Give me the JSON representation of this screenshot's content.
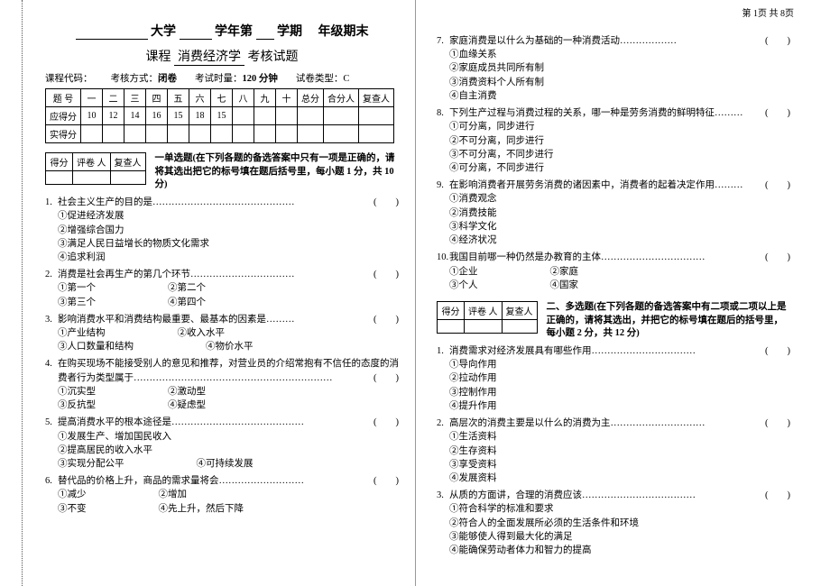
{
  "pageIndicator": "第 1页 共 8页",
  "header": {
    "line1_pre": "",
    "line1_uni": "大学",
    "line1_acad": "学年第",
    "line1_sem": "学期",
    "line1_grade": "年级期末",
    "subtitle_pre": "课程",
    "course_name": "消费经济学",
    "subtitle_post": "考核试题"
  },
  "meta": {
    "code_label": "课程代码：",
    "method_label": "考核方式：",
    "method_value": "闭卷",
    "duration_label": "考试时量：",
    "duration_value": "120 分钟",
    "papertype_label": "试卷类型：",
    "papertype_value": "C"
  },
  "scoreTable": {
    "headers": [
      "题 号",
      "一",
      "二",
      "三",
      "四",
      "五",
      "六",
      "七",
      "八",
      "九",
      "十",
      "总分",
      "合分人",
      "复查人"
    ],
    "row1_label": "应得分",
    "row1_values": [
      "10",
      "12",
      "14",
      "16",
      "15",
      "18",
      "15",
      "",
      "",
      "",
      "",
      "",
      ""
    ],
    "row2_label": "实得分"
  },
  "miniHeaders": [
    "得分",
    "评卷 人",
    "复查人"
  ],
  "sectionA": {
    "title": "一单选题",
    "desc": "(在下列各题的备选答案中只有一项是正确的，请将其选出把它的标号填在题后括号里，每小题 1 分，共 10 分)"
  },
  "sectionB": {
    "title": "二、多选题",
    "desc": "(在下列各题的备选答案中有二项或二项以上是正确的，请将其选出，并把它的标号填在题后的括号里，每小题 2 分，共 12 分)"
  },
  "qA": [
    {
      "n": "1.",
      "stem": "社会主义生产的目的是………………………………………",
      "opts": [
        [
          "①促进经济发展"
        ],
        [
          "②增强综合国力"
        ],
        [
          "③满足人民日益增长的物质文化需求"
        ],
        [
          "④追求利润"
        ]
      ]
    },
    {
      "n": "2.",
      "stem": "消费是社会再生产的第几个环节……………………………",
      "opts": [
        [
          "①第一个",
          "②第二个"
        ],
        [
          "③第三个",
          "④第四个"
        ]
      ]
    },
    {
      "n": "3.",
      "stem": "影响消费水平和消费结构最重要、最基本的因素是………",
      "opts": [
        [
          "①产业结构",
          "②收入水平"
        ],
        [
          "③人口数量和结构",
          "④物价水平"
        ]
      ]
    },
    {
      "n": "4.",
      "stem": "在购买现场不能接受别人的意见和推荐，对营业员的介绍常抱有不信任的态度的消费者行为类型属于………………………………………………………",
      "opts": [
        [
          "①沉实型",
          "②激动型"
        ],
        [
          "③反抗型",
          "④疑虑型"
        ]
      ]
    },
    {
      "n": "5.",
      "stem": "提高消费水平的根本途径是……………………………………",
      "opts": [
        [
          "①发展生产、增加国民收入"
        ],
        [
          "②提高居民的收入水平"
        ],
        [
          "③实现分配公平",
          "④可持续发展"
        ]
      ]
    },
    {
      "n": "6.",
      "stem": "替代品的价格上升，商品的需求量将会………………………",
      "opts": [
        [
          "①减少",
          "②增加"
        ],
        [
          "③不变",
          "④先上升，然后下降"
        ]
      ]
    }
  ],
  "qAR": [
    {
      "n": "7.",
      "stem": "家庭消费是以什么为基础的一种消费活动………………",
      "opts": [
        [
          "①血缘关系"
        ],
        [
          "②家庭成员共同所有制"
        ],
        [
          "③消费资料个人所有制"
        ],
        [
          "④自主消费"
        ]
      ]
    },
    {
      "n": "8.",
      "stem": "下列生产过程与消费过程的关系，哪一种是劳务消费的鲜明特征………",
      "opts": [
        [
          "①可分离，同步进行"
        ],
        [
          "②不可分离，同步进行"
        ],
        [
          "③不可分离，不同步进行"
        ],
        [
          "④可分离，不同步进行"
        ]
      ]
    },
    {
      "n": "9.",
      "stem": "在影响消费者开展劳务消费的诸因素中，消费者的起着决定作用………",
      "opts": [
        [
          "①消费观念"
        ],
        [
          "②消费技能"
        ],
        [
          "③科学文化"
        ],
        [
          "④经济状况"
        ]
      ]
    },
    {
      "n": "10.",
      "stem": "我国目前哪一种仍然是办教育的主体……………………………",
      "opts": [
        [
          "①企业",
          "②家庭"
        ],
        [
          "③个人",
          "④国家"
        ]
      ]
    }
  ],
  "qB": [
    {
      "n": "1.",
      "stem": "消费需求对经济发展具有哪些作用……………………………",
      "opts": [
        [
          "①导向作用"
        ],
        [
          "②拉动作用"
        ],
        [
          "③控制作用"
        ],
        [
          "④提升作用"
        ]
      ]
    },
    {
      "n": "2.",
      "stem": "高层次的消费主要是以什么的消费为主…………………………",
      "opts": [
        [
          "①生活资料"
        ],
        [
          "②生存资料"
        ],
        [
          "③享受资料"
        ],
        [
          "④发展资料"
        ]
      ]
    },
    {
      "n": "3.",
      "stem": "从质的方面讲，合理的消费应该………………………………",
      "opts": [
        [
          "①符合科学的标准和要求"
        ],
        [
          "②符合人的全面发展所必须的生活条件和环境"
        ],
        [
          "③能够使人得到最大化的满足"
        ],
        [
          "④能确保劳动者体力和智力的提高"
        ]
      ]
    }
  ]
}
